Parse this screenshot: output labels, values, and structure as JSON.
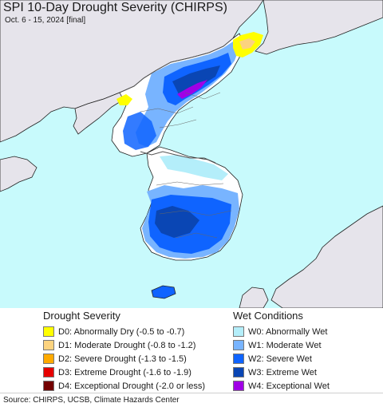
{
  "header": {
    "title": "SPI 10-Day Drought Severity (CHIRPS)",
    "subtitle": "Oct. 6 - 15, 2024 [final]"
  },
  "colors": {
    "sea": "#c8fafc",
    "land_outside": "#e6e4eb",
    "land_neutral": "#ffffff",
    "border": "#555555",
    "coast": "#222222"
  },
  "legend": {
    "drought": {
      "heading": "Drought Severity",
      "items": [
        {
          "label": "D0: Abnormally Dry (-0.5 to -0.7)",
          "color": "#ffff00"
        },
        {
          "label": "D1: Moderate Drought (-0.8 to -1.2)",
          "color": "#fcd37f"
        },
        {
          "label": "D2: Severe Drought (-1.3 to -1.5)",
          "color": "#ffaa00"
        },
        {
          "label": "D3: Extreme Drought (-1.6 to -1.9)",
          "color": "#e60000"
        },
        {
          "label": "D4: Exceptional Drought (-2.0 or less)",
          "color": "#730000"
        }
      ]
    },
    "wet": {
      "heading": "Wet Conditions",
      "items": [
        {
          "label": "W0: Abnormally Wet",
          "color": "#b4eefa"
        },
        {
          "label": "W1: Moderate Wet",
          "color": "#78b4ff"
        },
        {
          "label": "W2: Severe Wet",
          "color": "#0f64ff"
        },
        {
          "label": "W3: Extreme Wet",
          "color": "#0a46b4"
        },
        {
          "label": "W4: Exceptional Wet",
          "color": "#a000e6"
        }
      ]
    }
  },
  "footer": {
    "source": "Source: CHIRPS, UCSB, Climate Hazards Center"
  }
}
